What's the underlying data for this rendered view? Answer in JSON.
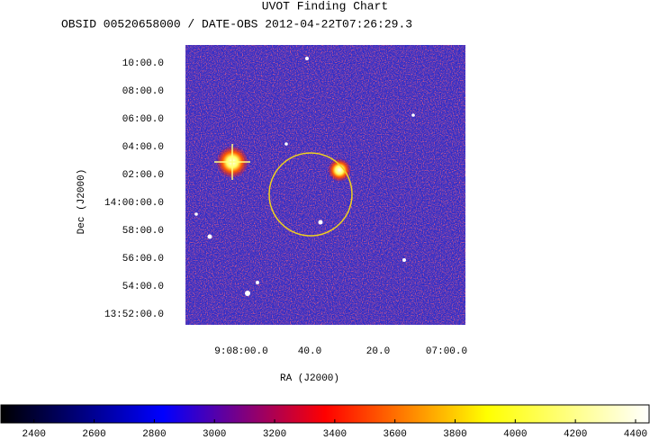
{
  "chart_data": {
    "type": "image",
    "title": "UVOT Finding Chart",
    "subtitle": "OBSID 00520658000 / DATE-OBS 2012-04-22T07:26:29.3",
    "x_label": "RA (J2000)",
    "y_label": "Dec (J2000)",
    "x_tick_labels": [
      "9:08:00.0",
      "40.0",
      "20.0",
      "07:00.0"
    ],
    "y_tick_labels": [
      "10:00.0",
      "08:00.0",
      "06:00.0",
      "04:00.0",
      "02:00.0",
      "14:00:00.0",
      "58:00.0",
      "56:00.0",
      "54:00.0",
      "13:52:00.0"
    ],
    "colorbar": {
      "lim": [
        2290,
        4445
      ],
      "ticks": [
        2400,
        2600,
        2800,
        3000,
        3200,
        3400,
        3600,
        3800,
        4000,
        4200,
        4400
      ],
      "colormap": [
        "#000000",
        "#0000ff",
        "#ff0000",
        "#ffff00",
        "#ffffff"
      ]
    }
  }
}
